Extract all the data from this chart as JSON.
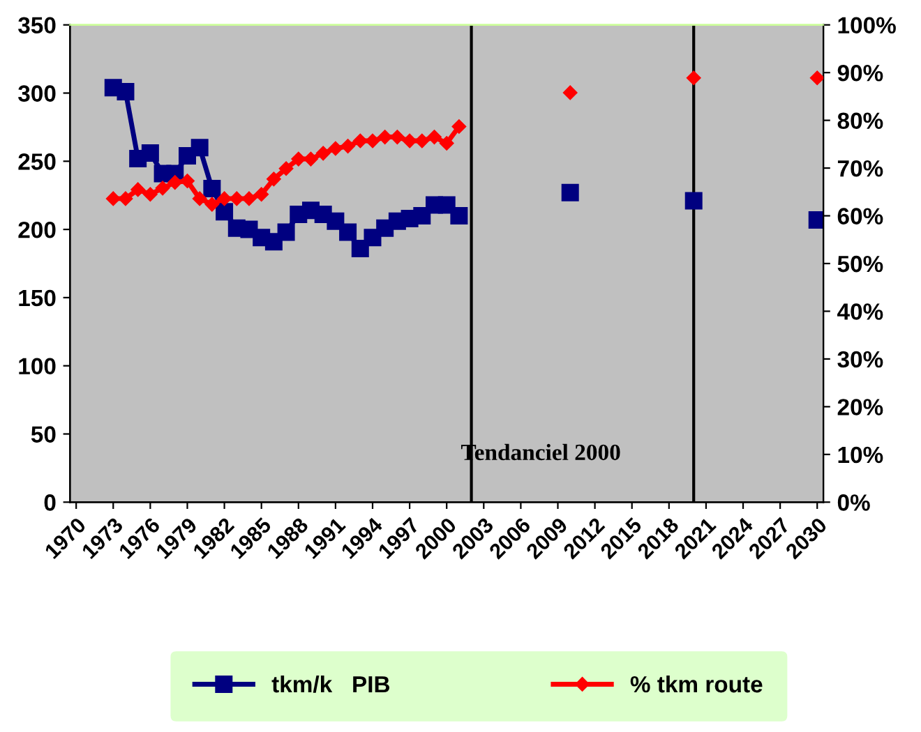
{
  "chart_data": {
    "type": "line",
    "x": [
      1973,
      1974,
      1975,
      1976,
      1977,
      1978,
      1979,
      1980,
      1981,
      1982,
      1983,
      1984,
      1985,
      1986,
      1987,
      1988,
      1989,
      1990,
      1991,
      1992,
      1993,
      1994,
      1995,
      1996,
      1997,
      1998,
      1999,
      2000,
      2001,
      2005,
      2010,
      2015,
      2020,
      2025,
      2030
    ],
    "series": [
      {
        "name": "tkm/k   PIB",
        "color": "#000080",
        "marker": "square",
        "values": [
          304,
          301,
          252,
          256,
          241,
          241,
          254,
          260,
          230,
          213,
          201,
          200,
          194,
          191,
          198,
          211,
          214,
          211,
          206,
          198,
          186,
          194,
          201,
          206,
          208,
          210,
          218,
          218,
          210,
          null,
          227,
          null,
          221,
          null,
          207
        ]
      },
      {
        "name": "% tkm route",
        "color": "#ff0000",
        "marker": "diamond",
        "axis": "y2",
        "values": [
          63.6,
          63.6,
          65.5,
          64.5,
          65.8,
          67,
          67.3,
          63.6,
          62.4,
          63.6,
          63.6,
          63.6,
          64.5,
          67.7,
          69.9,
          71.9,
          71.9,
          73.1,
          74.1,
          74.6,
          75.7,
          75.7,
          76.5,
          76.5,
          75.7,
          75.7,
          76.5,
          75.2,
          78.7,
          null,
          85.8,
          null,
          88.9,
          null,
          88.9
        ]
      }
    ],
    "xlim": [
      1969.5,
      2030.5
    ],
    "xticks": [
      1970,
      1973,
      1976,
      1979,
      1982,
      1985,
      1988,
      1991,
      1994,
      1997,
      2000,
      2003,
      2006,
      2009,
      2012,
      2015,
      2018,
      2021,
      2024,
      2027,
      2030
    ],
    "ylim": [
      0,
      350
    ],
    "yticks": [
      0,
      50,
      100,
      150,
      200,
      250,
      300,
      350
    ],
    "y2lim": [
      0,
      100
    ],
    "y2ticks": [
      {
        "value": 0,
        "label": "0%"
      },
      {
        "value": 10,
        "label": "10%"
      },
      {
        "value": 20,
        "label": "20%"
      },
      {
        "value": 30,
        "label": "30%"
      },
      {
        "value": 40,
        "label": "40%"
      },
      {
        "value": 50,
        "label": "50%"
      },
      {
        "value": 60,
        "label": "60%"
      },
      {
        "value": 70,
        "label": "70%"
      },
      {
        "value": 80,
        "label": "80%"
      },
      {
        "value": 90,
        "label": "90%"
      },
      {
        "value": 100,
        "label": "100%"
      }
    ],
    "ref_lines": [
      {
        "axis": "x",
        "value": 2002,
        "color": "#000000"
      },
      {
        "axis": "x",
        "value": 2020,
        "color": "#000000"
      }
    ],
    "annotations": [
      "Tendanciel 2000"
    ],
    "grid": false,
    "legend": "bottom",
    "line_style": "solid"
  }
}
